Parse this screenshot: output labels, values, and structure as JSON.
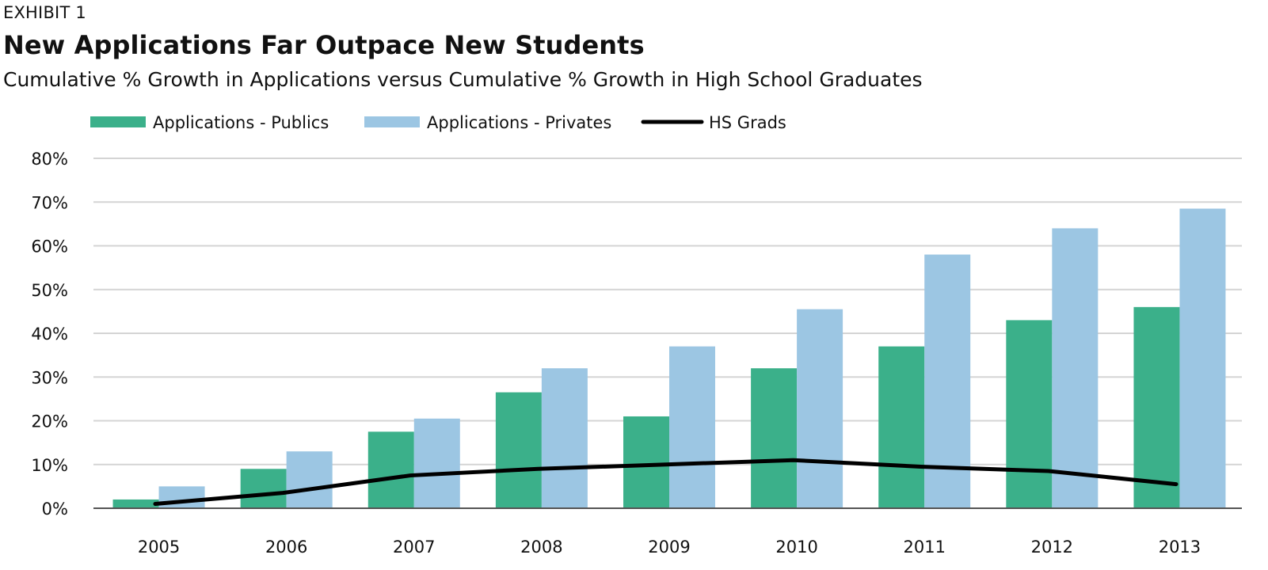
{
  "header": {
    "exhibit": "EXHIBIT 1",
    "title": "New Applications Far Outpace New Students",
    "subtitle": "Cumulative % Growth in Applications versus Cumulative % Growth in High School Graduates"
  },
  "colors": {
    "publics": "#3bb08a",
    "privates": "#9cc6e3",
    "hs_grads": "#000000",
    "gridline": "#d4d4d4",
    "axis": "#555555"
  },
  "chart_data": {
    "type": "bar",
    "title": "New Applications Far Outpace New Students",
    "subtitle": "Cumulative % Growth in Applications versus Cumulative % Growth in High School Graduates",
    "categories": [
      "2005",
      "2006",
      "2007",
      "2008",
      "2009",
      "2010",
      "2011",
      "2012",
      "2013"
    ],
    "series": [
      {
        "name": "Applications - Publics",
        "kind": "bar",
        "values": [
          2,
          9,
          17.5,
          26.5,
          21,
          32,
          37,
          43,
          46
        ]
      },
      {
        "name": "Applications - Privates",
        "kind": "bar",
        "values": [
          5,
          13,
          20.5,
          32,
          37,
          45.5,
          58,
          64,
          68.5
        ]
      },
      {
        "name": "HS Grads",
        "kind": "line",
        "values": [
          1,
          3.5,
          7.5,
          9,
          10,
          11,
          9.5,
          8.5,
          5.5
        ]
      }
    ],
    "ylim": [
      0,
      80
    ],
    "y_ticks": [
      0,
      10,
      20,
      30,
      40,
      50,
      60,
      70,
      80
    ],
    "y_tick_labels": [
      "0%",
      "10%",
      "20%",
      "30%",
      "40%",
      "50%",
      "60%",
      "70%",
      "80%"
    ],
    "grid": true,
    "legend_position": "top-left",
    "xlabel": "",
    "ylabel": ""
  }
}
